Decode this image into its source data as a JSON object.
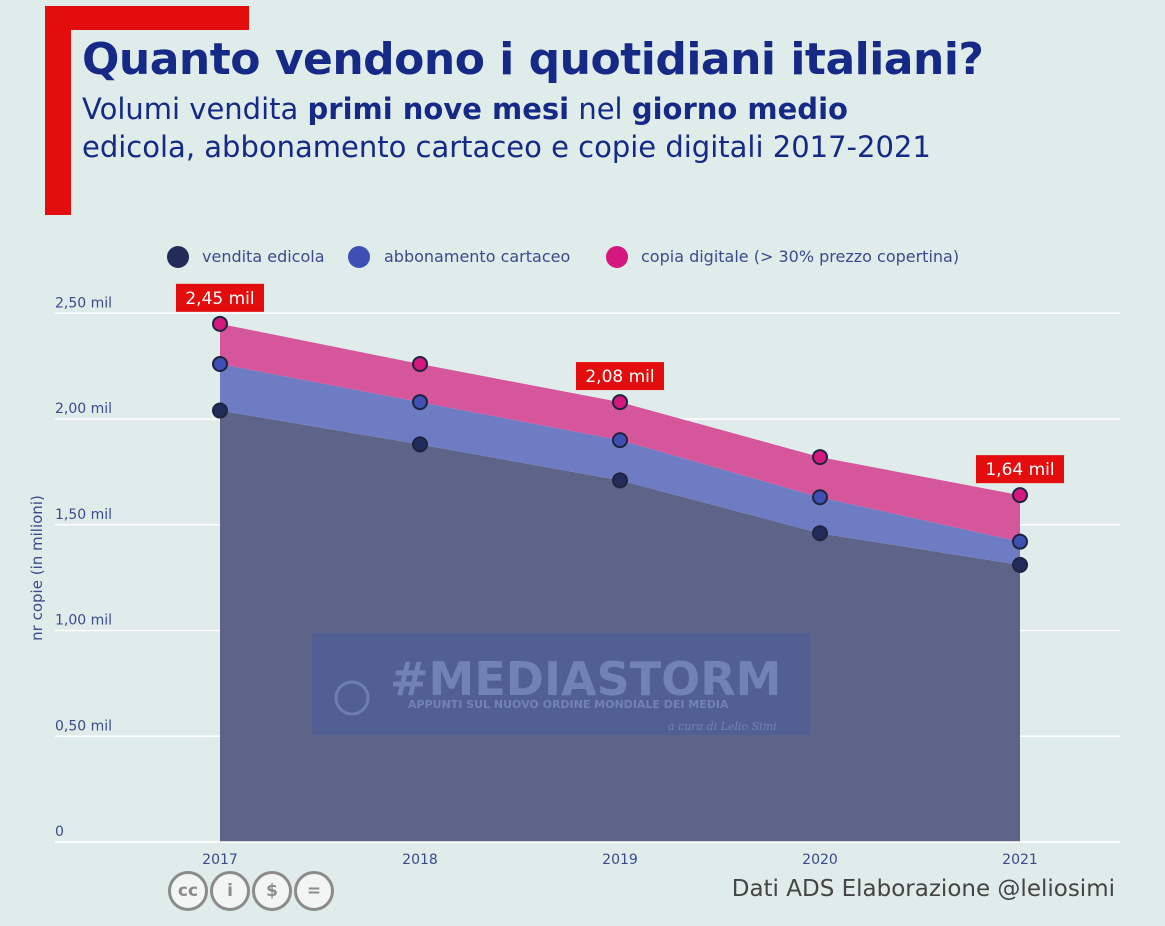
{
  "header": {
    "title": "Quanto vendono i quotidiani italiani?",
    "subtitle_line1_a": "Volumi vendita ",
    "subtitle_line1_b": "primi nove mesi",
    "subtitle_line1_c": " nel ",
    "subtitle_line1_d": "giorno medio",
    "subtitle_line2": "edicola, abbonamento cartaceo e copie digitali 2017-2021"
  },
  "colors": {
    "accent_red": "#e30d0d",
    "title_blue": "#152a86",
    "edicola_area": "#5d6487",
    "abbonamento_area": "#6e7cc4",
    "digitale_area": "#d6569c",
    "edicola_dot": "#232c59",
    "abbonamento_dot": "#3f50b5",
    "digitale_dot": "#d4187f"
  },
  "chart_data": {
    "type": "area",
    "stacked": true,
    "categories": [
      "2017",
      "2018",
      "2019",
      "2020",
      "2021"
    ],
    "series": [
      {
        "name": "vendita edicola",
        "values": [
          2.04,
          1.88,
          1.71,
          1.46,
          1.31
        ]
      },
      {
        "name": "abbonamento cartaceo",
        "values": [
          0.22,
          0.2,
          0.19,
          0.17,
          0.11
        ]
      },
      {
        "name": "copia digitale (> 30% prezzo copertina)",
        "values": [
          0.19,
          0.18,
          0.18,
          0.19,
          0.22
        ]
      }
    ],
    "totals_labels": [
      {
        "category": "2017",
        "value": 2.45,
        "label": "2,45 mil"
      },
      {
        "category": "2019",
        "value": 2.08,
        "label": "2,08 mil"
      },
      {
        "category": "2021",
        "value": 1.64,
        "label": "1,64 mil"
      }
    ],
    "yticks": [
      0,
      0.5,
      1.0,
      1.5,
      2.0,
      2.5
    ],
    "ytick_labels": [
      "0",
      "0,50 mil",
      "1,00 mil",
      "1,50 mil",
      "2,00 mil",
      "2,50 mil"
    ],
    "ylim": [
      0,
      2.5
    ],
    "ylabel": "nr copie (in milioni)",
    "xlabel": "",
    "grid": true,
    "legend_position": "top"
  },
  "watermark": {
    "title": "#MEDIASTORM",
    "subtitle": "APPUNTI SUL NUOVO ORDINE MONDIALE DEI MEDIA",
    "credit": "a cura di Lelio Simi"
  },
  "license_icons": [
    "cc",
    "i",
    "$",
    "="
  ],
  "footer": {
    "source": "Dati ADS  Elaborazione @leliosimi"
  }
}
